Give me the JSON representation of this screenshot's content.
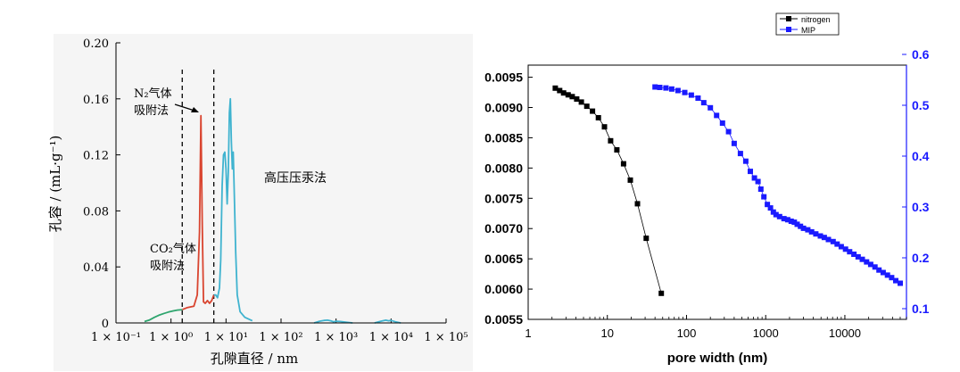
{
  "chart_data": [
    {
      "type": "line",
      "xscale": "log",
      "xlabel": "孔隙直径 / nm",
      "ylabel": "孔容 / (mL·g⁻¹)",
      "xlim": [
        0.1,
        100000
      ],
      "ylim": [
        0,
        0.2
      ],
      "xticks": [
        {
          "v": 0.1,
          "label": "1 × 10⁻¹"
        },
        {
          "v": 1,
          "label": "1 × 10⁰"
        },
        {
          "v": 10,
          "label": "1 × 10¹"
        },
        {
          "v": 100,
          "label": "1 × 10²"
        },
        {
          "v": 1000,
          "label": "1 × 10³"
        },
        {
          "v": 10000,
          "label": "1 × 10⁴"
        },
        {
          "v": 100000,
          "label": "1 × 10⁵"
        }
      ],
      "yticks": [
        {
          "v": 0,
          "label": "0"
        },
        {
          "v": 0.04,
          "label": "0.04"
        },
        {
          "v": 0.08,
          "label": "0.08"
        },
        {
          "v": 0.12,
          "label": "0.12"
        },
        {
          "v": 0.16,
          "label": "0.16"
        },
        {
          "v": 0.2,
          "label": "0.20"
        }
      ],
      "dashed_lines_x": [
        1.6,
        6.0
      ],
      "annotations": {
        "co2": [
          "CO₂气体",
          "吸附法"
        ],
        "n2": [
          "N₂气体",
          "吸附法"
        ],
        "mip": "高压压汞法"
      },
      "series": [
        {
          "color": "#2ea56e",
          "x": [
            0.33,
            0.4,
            0.5,
            0.6,
            0.75,
            0.9,
            1.1,
            1.3,
            1.6
          ],
          "y": [
            0.001,
            0.002,
            0.004,
            0.0055,
            0.0068,
            0.0078,
            0.0086,
            0.0092,
            0.0095
          ]
        },
        {
          "color": "#d9442f",
          "x": [
            1.6,
            2.0,
            2.6,
            3.0,
            3.3,
            3.5,
            3.7,
            3.9,
            4.2,
            4.6,
            5.0,
            5.5,
            6.0
          ],
          "y": [
            0.0095,
            0.011,
            0.012,
            0.02,
            0.065,
            0.148,
            0.07,
            0.015,
            0.014,
            0.016,
            0.014,
            0.016,
            0.02
          ]
        },
        {
          "color": "#3fb3cf",
          "x": [
            6.0,
            6.5,
            7.0,
            7.6,
            8.0,
            8.5,
            9.0,
            9.5,
            10.0,
            10.5,
            11.0,
            11.5,
            12.0,
            12.5,
            13.0,
            13.5,
            14.0,
            15.0,
            16.0,
            18.0,
            22.0,
            30.0
          ],
          "y": [
            0.02,
            0.02,
            0.018,
            0.025,
            0.045,
            0.098,
            0.12,
            0.122,
            0.11,
            0.085,
            0.108,
            0.15,
            0.16,
            0.13,
            0.11,
            0.122,
            0.1,
            0.05,
            0.02,
            0.008,
            0.004,
            0.0015
          ]
        },
        {
          "color": "#3fb3cf",
          "x": [
            400,
            500,
            600,
            700,
            800,
            900,
            1000,
            1200,
            1500,
            2000
          ],
          "y": [
            0,
            0.0012,
            0.0018,
            0.002,
            0.0015,
            0.0008,
            0.0012,
            0.001,
            0.0006,
            0
          ]
        },
        {
          "color": "#3fb3cf",
          "x": [
            5000,
            6500,
            8000,
            9000,
            10000,
            12000,
            15000
          ],
          "y": [
            0,
            0.0012,
            0.002,
            0.0015,
            0.0018,
            0.0008,
            0
          ]
        }
      ]
    },
    {
      "type": "scatter",
      "xscale": "log",
      "xlabel": "pore width (nm)",
      "xlim": [
        1,
        60000
      ],
      "ylim_left": [
        0.0055,
        0.0097
      ],
      "ylim_right": [
        0.1,
        0.6
      ],
      "xticks": [
        {
          "v": 1,
          "label": "1"
        },
        {
          "v": 10,
          "label": "10"
        },
        {
          "v": 100,
          "label": "100"
        },
        {
          "v": 1000,
          "label": "1000"
        },
        {
          "v": 10000,
          "label": "10000"
        }
      ],
      "yticks_left": [
        "0.0055",
        "0.0060",
        "0.0065",
        "0.0070",
        "0.0075",
        "0.0080",
        "0.0085",
        "0.0090",
        "0.0095"
      ],
      "yticks_right": [
        "0.1",
        "0.2",
        "0.3",
        "0.4",
        "0.5",
        "0.6"
      ],
      "right_axis_color": "#1a1aff",
      "legend": {
        "position": "top-right",
        "entries": [
          "nitrogen",
          "MIP"
        ]
      },
      "series": [
        {
          "name": "nitrogen",
          "color": "#000000",
          "axis": "left",
          "x": [
            2.2,
            2.5,
            2.8,
            3.2,
            3.6,
            4.1,
            4.7,
            5.5,
            6.5,
            7.7,
            9.2,
            11.0,
            13.2,
            16.0,
            19.5,
            24.0,
            31.0,
            48.0
          ],
          "y": [
            0.00932,
            0.00928,
            0.00924,
            0.00921,
            0.00918,
            0.00914,
            0.00909,
            0.00902,
            0.00894,
            0.00883,
            0.00868,
            0.00845,
            0.0083,
            0.00807,
            0.0078,
            0.00741,
            0.00684,
            0.00593
          ]
        },
        {
          "name": "MIP",
          "color": "#1a1aff",
          "axis": "right",
          "x": [
            40,
            46,
            55,
            65,
            78,
            95,
            115,
            140,
            165,
            200,
            240,
            285,
            340,
            400,
            480,
            560,
            640,
            720,
            800,
            870,
            950,
            1050,
            1150,
            1250,
            1350,
            1500,
            1700,
            1900,
            2100,
            2300,
            2500,
            2750,
            3000,
            3400,
            3800,
            4300,
            4900,
            5500,
            6200,
            7100,
            8000,
            9000,
            10200,
            11500,
            13000,
            14700,
            16600,
            18800,
            21200,
            24000,
            27000,
            30500,
            34500,
            39000,
            44000,
            50000
          ],
          "y": [
            0.536,
            0.535,
            0.534,
            0.532,
            0.529,
            0.525,
            0.52,
            0.514,
            0.505,
            0.495,
            0.48,
            0.465,
            0.448,
            0.425,
            0.405,
            0.39,
            0.37,
            0.357,
            0.35,
            0.335,
            0.32,
            0.305,
            0.298,
            0.29,
            0.285,
            0.281,
            0.277,
            0.275,
            0.272,
            0.27,
            0.266,
            0.262,
            0.258,
            0.255,
            0.251,
            0.247,
            0.243,
            0.24,
            0.236,
            0.232,
            0.227,
            0.222,
            0.217,
            0.212,
            0.207,
            0.202,
            0.197,
            0.192,
            0.187,
            0.182,
            0.176,
            0.171,
            0.166,
            0.161,
            0.155,
            0.15
          ]
        }
      ]
    }
  ]
}
